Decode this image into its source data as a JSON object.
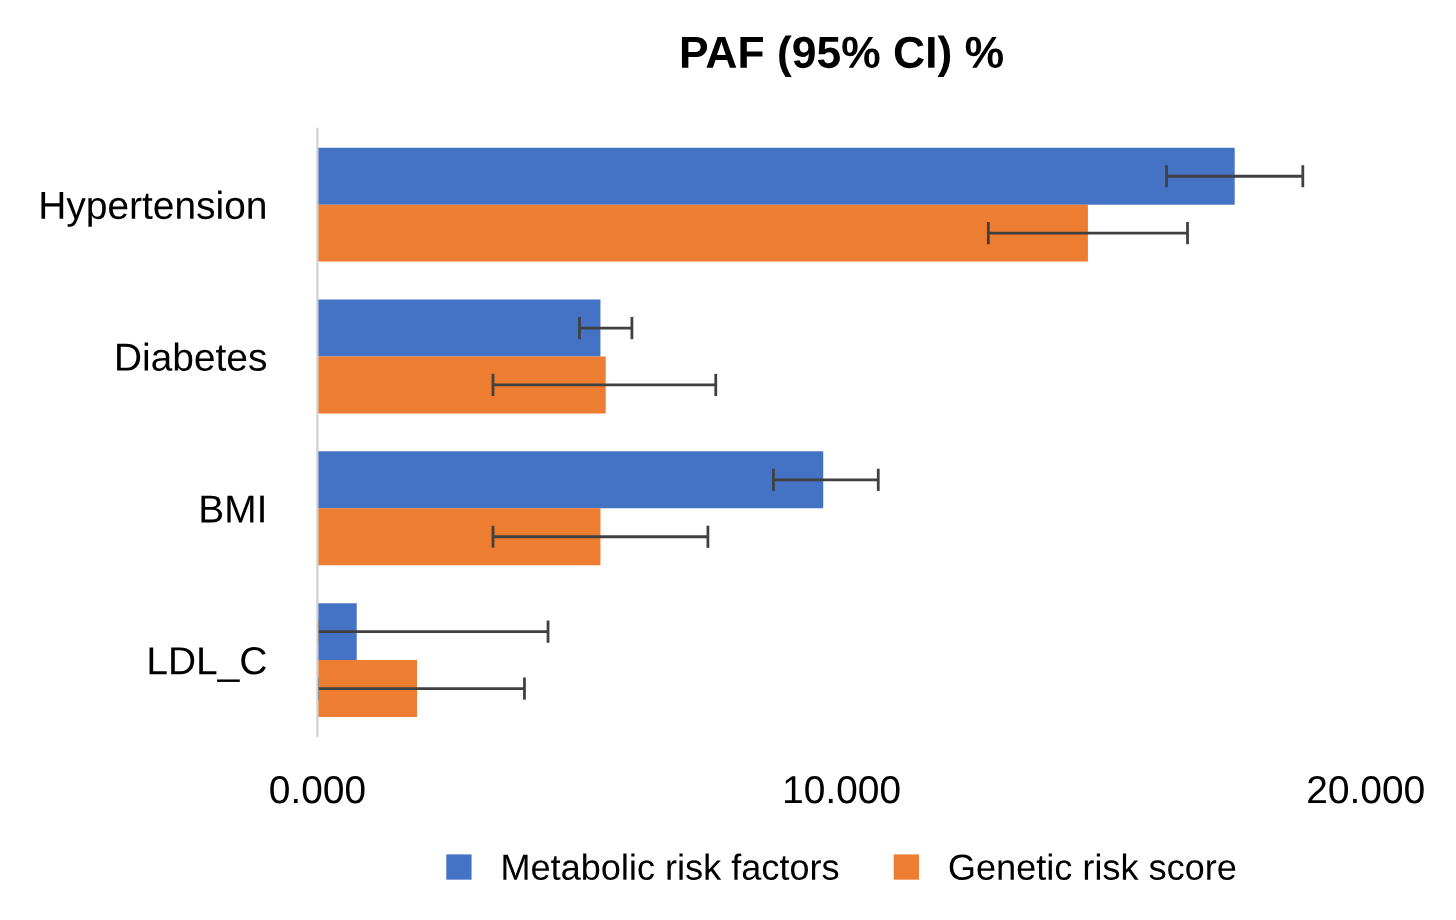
{
  "chart_data": {
    "type": "bar",
    "orientation": "horizontal",
    "title": "PAF (95% CI) %",
    "categories": [
      "Hypertension",
      "Diabetes",
      "BMI",
      "LDL_C"
    ],
    "series": [
      {
        "name": "Metabolic risk factors",
        "color": "#4472c4",
        "values": [
          17.5,
          5.4,
          9.65,
          0.75
        ],
        "errors": [
          [
            16.2,
            18.8
          ],
          [
            5.0,
            6.0
          ],
          [
            8.7,
            10.7
          ],
          [
            0,
            4.4
          ]
        ]
      },
      {
        "name": "Genetic risk score",
        "color": "#ed7d31",
        "values": [
          14.7,
          5.5,
          5.4,
          1.9
        ],
        "errors": [
          [
            12.8,
            16.6
          ],
          [
            3.35,
            7.6
          ],
          [
            3.35,
            7.45
          ],
          [
            0,
            3.95
          ]
        ]
      }
    ],
    "xlim": [
      0,
      20
    ],
    "xticks": [
      {
        "value": 0,
        "label": "0.000"
      },
      {
        "value": 10,
        "label": "10.000"
      },
      {
        "value": 20,
        "label": "20.000"
      }
    ],
    "grid": false,
    "legend": "bottom"
  }
}
